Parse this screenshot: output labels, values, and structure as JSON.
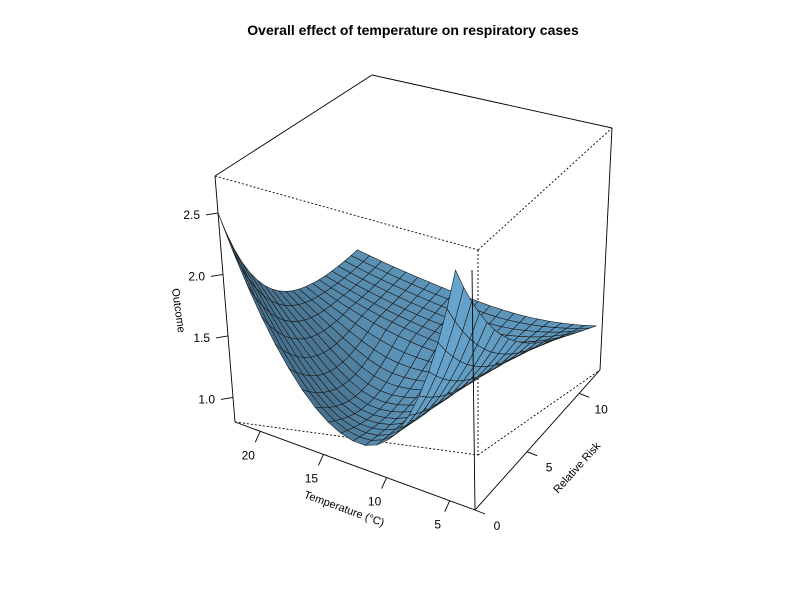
{
  "chart_data": {
    "type": "surface",
    "title": "Overall effect of temperature on respiratory cases",
    "x_axis": {
      "label": "Temperature (°C)",
      "ticks": [
        20,
        15,
        10,
        5
      ],
      "range": [
        3,
        22
      ]
    },
    "y_axis": {
      "label": "Relative Risk",
      "ticks": [
        0,
        5,
        10
      ],
      "range": [
        0,
        12
      ]
    },
    "z_axis": {
      "label": "Outcome",
      "ticks": [
        1.0,
        1.5,
        2.0,
        2.5
      ],
      "range": [
        0.8,
        2.8
      ]
    },
    "surface_color": "#73b8e6",
    "grid_lines": 21,
    "corner_values": {
      "temp_22_lag_0": 2.5,
      "temp_3_lag_0": 2.75,
      "temp_3_lag_12": 1.05,
      "temp_22_lag_12": 0.88
    }
  }
}
